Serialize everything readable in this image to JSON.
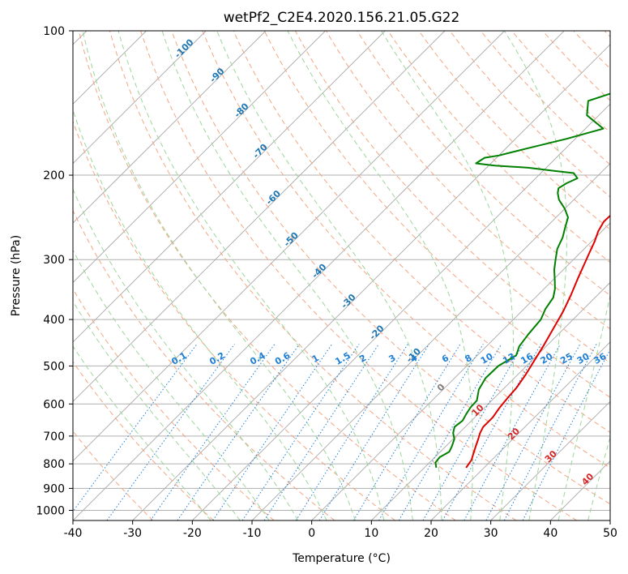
{
  "chart_data": {
    "type": "line",
    "title": "wetPf2_C2E4.2020.156.21.05.G22",
    "xlabel": "Temperature (°C)",
    "ylabel": "Pressure (hPa)",
    "xlim": [
      -40,
      50
    ],
    "ylim": [
      1050,
      100
    ],
    "y_scale": "log",
    "grid": true,
    "x_ticks": [
      "-40",
      "-30",
      "-20",
      "-10",
      "0",
      "10",
      "20",
      "30",
      "40",
      "50"
    ],
    "y_ticks": [
      "100",
      "200",
      "300",
      "400",
      "500",
      "600",
      "700",
      "800",
      "900",
      "1000"
    ],
    "series": [
      {
        "kind": "temperature",
        "color": "#e00000",
        "x": [
          17.0,
          16.6,
          15.8,
          15.0,
          14.2,
          13.5,
          13.0,
          13.0,
          12.5,
          12.2,
          12.0,
          11.3,
          10.5,
          9.5,
          8.3,
          7.0,
          5.5,
          4.0,
          2.8,
          1.5,
          0.5,
          -0.6,
          -1.3,
          -1.2,
          -0.5,
          1.0,
          2.8,
          4.6,
          6.3,
          8.0,
          9.5,
          10.4,
          12.0,
          13.2,
          14.2,
          15.3,
          16.3,
          17.3,
          19.8,
          21.0,
          22.5,
          24.5
        ],
        "y": [
          815,
          785,
          760,
          735,
          710,
          690,
          670,
          640,
          610,
          580,
          555,
          520,
          490,
          455,
          420,
          385,
          355,
          330,
          310,
          290,
          275,
          262,
          250,
          240,
          232,
          223,
          213,
          205,
          198,
          190,
          180,
          172,
          165,
          158,
          152,
          145,
          138,
          132,
          125,
          118,
          110,
          100
        ]
      },
      {
        "kind": "dewpoint",
        "color": "#008000",
        "x": [
          12.0,
          11.0,
          10.8,
          11.5,
          11.0,
          10.2,
          9.0,
          8.2,
          8.5,
          8.0,
          7.6,
          7.5,
          6.0,
          5.2,
          5.3,
          6.5,
          5.5,
          5.0,
          4.6,
          3.6,
          3.0,
          1.8,
          0.2,
          -1.5,
          -3.0,
          -4.5,
          -5.5,
          -6.7,
          -8.0,
          -10.0,
          -12.5,
          -13.8,
          -14.5,
          -14.0,
          -13.0,
          -14.5,
          -18.0,
          -23.0,
          -29.0,
          -32.5,
          -32.0,
          -30.0,
          -26.5,
          -21.5,
          -17.0,
          -22.0,
          -24.2,
          -20.0,
          -14.0,
          -8.2,
          -7.5,
          -9.5,
          -9.0,
          -7.0,
          -4.5
        ],
        "y": [
          815,
          795,
          775,
          755,
          735,
          710,
          690,
          670,
          650,
          630,
          610,
          590,
          560,
          530,
          500,
          475,
          455,
          430,
          400,
          380,
          360,
          345,
          330,
          315,
          300,
          285,
          270,
          258,
          245,
          235,
          225,
          218,
          213,
          208,
          203,
          198,
          196,
          193,
          191,
          189,
          184,
          182,
          176,
          168,
          160,
          150,
          140,
          132,
          126,
          118,
          112,
          106,
          103,
          101,
          100
        ]
      }
    ],
    "mixing_ratio_labels": [
      "0.1",
      "0.2",
      "0.4",
      "0.6",
      "1",
      "1.5",
      "2",
      "3",
      "4",
      "6",
      "8",
      "10",
      "13",
      "16",
      "20",
      "25",
      "30",
      "36"
    ],
    "mixing_ratio_values": [
      0.1,
      0.2,
      0.4,
      0.6,
      1,
      1.5,
      2,
      3,
      4,
      6,
      8,
      10,
      13,
      16,
      20,
      25,
      30,
      36
    ],
    "dry_adiabat_labels": [
      "-100",
      "-90",
      "-80",
      "-70",
      "-60",
      "-50",
      "-40",
      "-30",
      "-20",
      "-10"
    ],
    "moist_adiabat_labels": [
      "0",
      "10",
      "20",
      "30",
      "40"
    ],
    "colors": {
      "temperature": "#e00000",
      "dewpoint": "#008000",
      "dry_adiabat_line": "#f4a582",
      "dry_adiabat_label": "#1f77b4",
      "moist_adiabat_line": "#9cd69c",
      "mixing_ratio": "#1e7fd6",
      "isotherm": "#a9a9a9",
      "moist_label_zero": "#808080",
      "moist_label": "#d62728"
    }
  }
}
